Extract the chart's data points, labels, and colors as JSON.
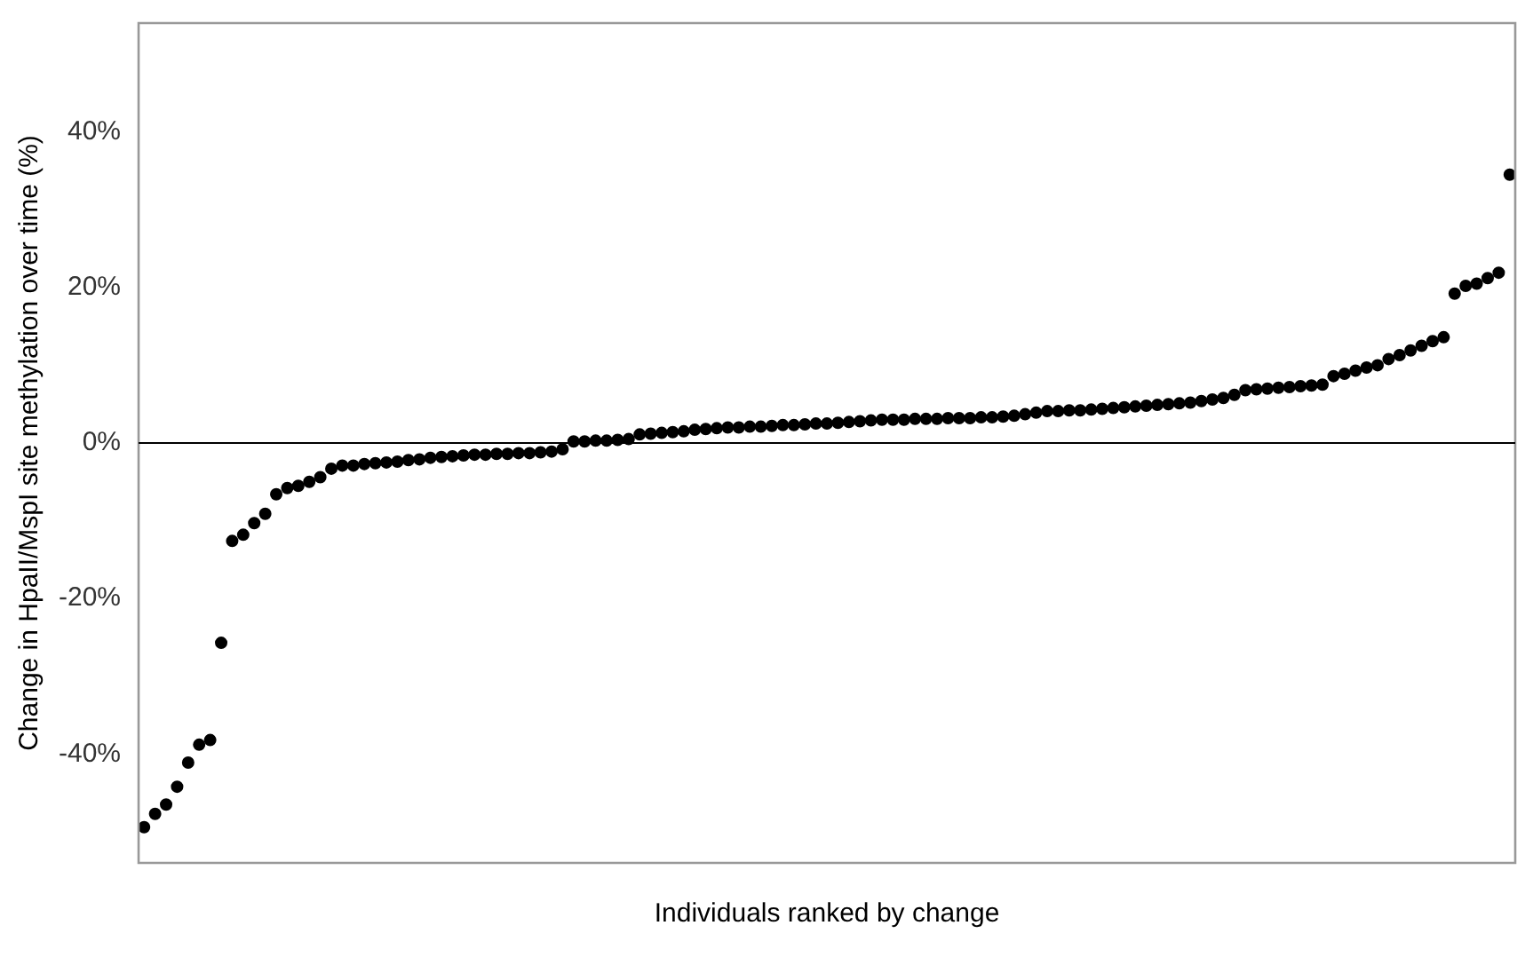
{
  "chart_data": {
    "type": "scatter",
    "xlabel": "Individuals ranked by change",
    "ylabel": "Change in HpaII/MspI site methylation over time (%)",
    "categories": [
      null,
      null,
      null,
      null,
      null,
      null,
      null,
      null,
      null,
      null,
      null,
      null,
      null,
      null,
      null,
      null,
      null,
      null,
      null,
      null,
      null,
      null,
      null,
      null,
      null,
      null,
      null,
      null,
      null,
      null,
      null,
      null,
      null,
      null,
      null,
      null,
      null,
      null,
      null,
      null,
      null,
      null,
      null,
      null,
      null,
      null,
      null,
      null,
      null,
      null,
      null,
      null,
      null,
      null,
      null,
      null,
      null,
      null,
      null,
      null,
      null,
      null,
      null,
      null,
      null,
      null,
      null,
      null,
      null,
      null,
      null,
      null,
      null,
      null,
      null,
      null,
      null,
      null,
      null,
      null,
      null,
      null,
      null,
      null,
      null,
      null,
      null,
      null,
      null,
      null,
      null,
      null,
      null,
      null,
      null,
      null,
      null,
      null,
      null,
      null,
      null,
      null,
      null,
      null,
      null,
      null,
      null,
      null,
      null,
      null,
      null,
      null,
      null,
      null,
      null,
      null,
      null,
      null,
      null,
      null,
      null,
      null,
      null,
      null,
      null
    ],
    "values": [
      -49.4,
      -47.7,
      -46.5,
      -44.2,
      -41.1,
      -38.8,
      -38.2,
      -25.7,
      -12.6,
      -11.8,
      -10.3,
      -9.1,
      -6.6,
      -5.8,
      -5.5,
      -5.0,
      -4.4,
      -3.3,
      -2.9,
      -2.9,
      -2.7,
      -2.6,
      -2.5,
      -2.4,
      -2.2,
      -2.1,
      -1.9,
      -1.8,
      -1.7,
      -1.6,
      -1.5,
      -1.5,
      -1.4,
      -1.4,
      -1.3,
      -1.3,
      -1.2,
      -1.1,
      -0.8,
      0.2,
      0.2,
      0.3,
      0.3,
      0.4,
      0.5,
      1.1,
      1.2,
      1.3,
      1.4,
      1.5,
      1.7,
      1.8,
      1.9,
      2.0,
      2.0,
      2.1,
      2.1,
      2.2,
      2.3,
      2.3,
      2.4,
      2.5,
      2.5,
      2.6,
      2.7,
      2.8,
      2.9,
      3.0,
      3.0,
      3.0,
      3.1,
      3.1,
      3.1,
      3.2,
      3.2,
      3.2,
      3.3,
      3.3,
      3.4,
      3.5,
      3.7,
      3.9,
      4.1,
      4.1,
      4.2,
      4.2,
      4.3,
      4.4,
      4.5,
      4.6,
      4.7,
      4.8,
      4.9,
      5.0,
      5.1,
      5.2,
      5.4,
      5.6,
      5.8,
      6.2,
      6.8,
      6.9,
      7.0,
      7.1,
      7.2,
      7.3,
      7.4,
      7.5,
      8.6,
      8.9,
      9.3,
      9.7,
      10.0,
      10.8,
      11.3,
      11.9,
      12.5,
      13.1,
      13.6,
      19.2,
      20.2,
      20.5,
      21.2,
      21.9,
      34.5
    ],
    "color": "#000000",
    "marker": "circle",
    "grid": false,
    "legend": false,
    "ylim": [
      -54,
      54
    ],
    "yticks": [
      {
        "value": -40,
        "label": "-40%"
      },
      {
        "value": -20,
        "label": "-20%"
      },
      {
        "value": 0,
        "label": "0%"
      },
      {
        "value": 20,
        "label": "20%"
      },
      {
        "value": 40,
        "label": "40%"
      }
    ],
    "ref_lines": [
      {
        "axis": "y",
        "value": 0,
        "color": "#000000"
      }
    ]
  }
}
